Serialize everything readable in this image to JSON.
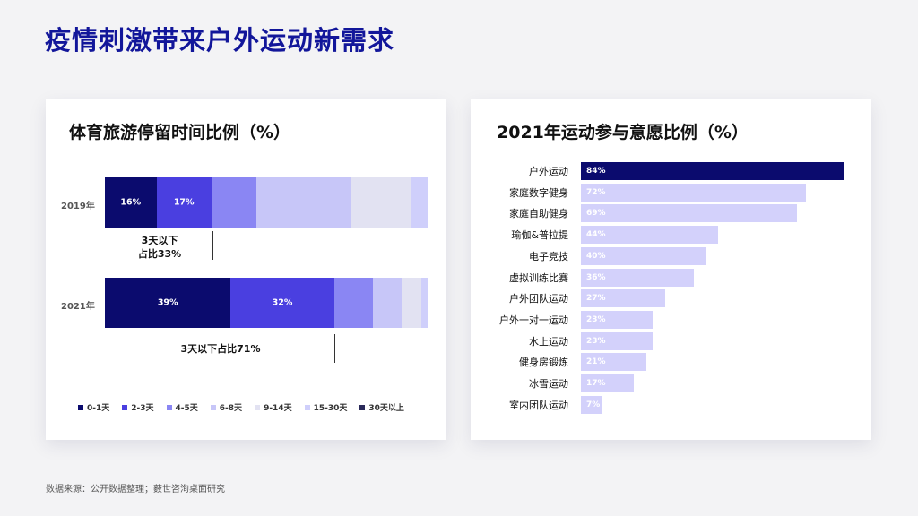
{
  "page": {
    "title": "疫情刺激带来户外运动新需求",
    "source": "数据来源：公开数据整理；薮世咨洵桌面研究"
  },
  "colors": {
    "c0": "#0b0b6e",
    "c1": "#4a3fe0",
    "c2": "#8a86f3",
    "c3": "#c7c6f8",
    "c4": "#e2e2f2",
    "c5": "#cfcffb",
    "c6": "#2a2a5a",
    "highlight": "#0b0b6e",
    "light": "#d3d1fb"
  },
  "chart_data": [
    {
      "type": "bar",
      "stacked": true,
      "orientation": "horizontal",
      "title": "体育旅游停留时间比例（%）",
      "categories": [
        "2019年",
        "2021年"
      ],
      "series": [
        {
          "name": "0-1天",
          "values": [
            16,
            39
          ],
          "labels": [
            "16%",
            "39%"
          ]
        },
        {
          "name": "2-3天",
          "values": [
            17,
            32
          ],
          "labels": [
            "17%",
            "32%"
          ]
        },
        {
          "name": "4-5天",
          "values": [
            14,
            12
          ],
          "labels": [
            "",
            ""
          ]
        },
        {
          "name": "6-8天",
          "values": [
            29,
            9
          ],
          "labels": [
            "",
            ""
          ]
        },
        {
          "name": "9-14天",
          "values": [
            19,
            6
          ],
          "labels": [
            "",
            ""
          ]
        },
        {
          "name": "15-30天",
          "values": [
            5,
            2
          ],
          "labels": [
            "",
            ""
          ]
        },
        {
          "name": "30天以上",
          "values": [
            0,
            0
          ],
          "labels": [
            "",
            ""
          ]
        }
      ],
      "annotations": [
        {
          "year": "2019年",
          "line1": "3天以下",
          "line2": "占比33%"
        },
        {
          "year": "2021年",
          "line1": "3天以下占比71%"
        }
      ]
    },
    {
      "type": "bar",
      "orientation": "horizontal",
      "title": "2021年运动参与意愿比例（%）",
      "categories": [
        "户外运动",
        "家庭数字健身",
        "家庭自助健身",
        "瑜伽&普拉提",
        "电子竞技",
        "虚拟训练比赛",
        "户外团队运动",
        "户外一对一运动",
        "水上运动",
        "健身房锻炼",
        "冰雪运动",
        "室内团队运动"
      ],
      "values": [
        84,
        72,
        69,
        44,
        40,
        36,
        27,
        23,
        23,
        21,
        17,
        7
      ],
      "labels": [
        "84%",
        "72%",
        "69%",
        "44%",
        "40%",
        "36%",
        "27%",
        "23%",
        "23%",
        "21%",
        "17%",
        "7%"
      ],
      "xlim": [
        0,
        84
      ]
    }
  ]
}
